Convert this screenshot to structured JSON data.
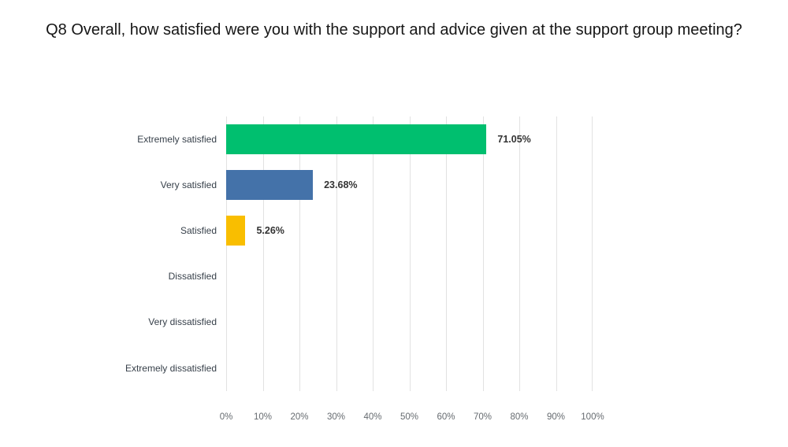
{
  "title": "Q8 Overall, how satisfied were you with the support and advice given at the support group meeting?",
  "colors": {
    "bar_green": "#00BF6F",
    "bar_blue": "#4472A9",
    "bar_yellow": "#F9BE00",
    "gridline": "#e2e2e2",
    "value_label": "#333333",
    "category_label": "#37404a",
    "tick_label": "#666b70"
  },
  "chart_data": {
    "type": "bar",
    "orientation": "horizontal",
    "title": "Q8 Overall, how satisfied were you with the support and advice given at the support group meeting?",
    "categories": [
      "Extremely satisfied",
      "Very satisfied",
      "Satisfied",
      "Dissatisfied",
      "Very dissatisfied",
      "Extremely dissatisfied"
    ],
    "values": [
      71.05,
      23.68,
      5.26,
      0,
      0,
      0
    ],
    "value_labels": [
      "71.05%",
      "23.68%",
      "5.26%",
      "",
      "",
      ""
    ],
    "bar_colors": [
      "#00BF6F",
      "#4472A9",
      "#F9BE00",
      "",
      "",
      ""
    ],
    "xlabel": "",
    "ylabel": "",
    "xlim": [
      0,
      100
    ],
    "x_ticks": [
      "0%",
      "10%",
      "20%",
      "30%",
      "40%",
      "50%",
      "60%",
      "70%",
      "80%",
      "90%",
      "100%"
    ],
    "grid": true,
    "legend": "none"
  }
}
